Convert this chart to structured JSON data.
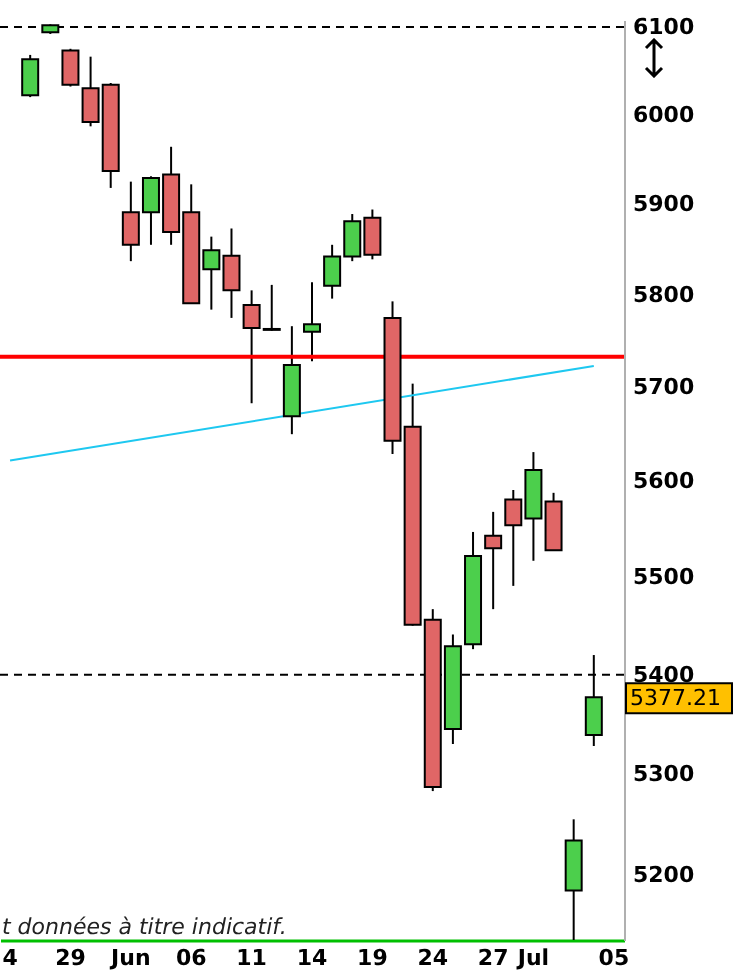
{
  "chart_data": {
    "type": "candlestick",
    "categories": [
      "4",
      null,
      null,
      "29",
      null,
      null,
      "Jun",
      null,
      null,
      "06",
      null,
      null,
      "11",
      null,
      null,
      "14",
      null,
      null,
      "19",
      null,
      null,
      "24",
      null,
      null,
      "27",
      null,
      "Jul",
      null,
      null,
      null,
      "05"
    ],
    "ohlc": [
      null,
      [
        6022,
        6068,
        6020,
        6063
      ],
      [
        6094,
        6103,
        6092,
        6102
      ],
      [
        6073,
        6075,
        6032,
        6034
      ],
      [
        6030,
        6066,
        5987,
        5992
      ],
      [
        6034,
        6036,
        5918,
        5937
      ],
      [
        5891,
        5925,
        5837,
        5855
      ],
      [
        5891,
        5931,
        5855,
        5929
      ],
      [
        5933,
        5964,
        5855,
        5869
      ],
      [
        5891,
        5922,
        5791,
        5791
      ],
      [
        5828,
        5864,
        5784,
        5849
      ],
      [
        5843,
        5873,
        5775,
        5805
      ],
      [
        5789,
        5805,
        5683,
        5764
      ],
      [
        5763,
        5811,
        5761,
        5762
      ],
      [
        5669,
        5766,
        5650,
        5724
      ],
      [
        5760,
        5814,
        5728,
        5768
      ],
      [
        5810,
        5855,
        5796,
        5842
      ],
      [
        5842,
        5889,
        5837,
        5881
      ],
      [
        5885,
        5894,
        5839,
        5844
      ],
      [
        5775,
        5793,
        5629,
        5643
      ],
      [
        5658,
        5704,
        5450,
        5451
      ],
      [
        5456,
        5467,
        5283,
        5287
      ],
      [
        5345,
        5441,
        5330,
        5429
      ],
      [
        5431,
        5547,
        5426,
        5522
      ],
      [
        5543,
        5568,
        5467,
        5530
      ],
      [
        5581,
        5591,
        5491,
        5554
      ],
      [
        5561,
        5631,
        5517,
        5612
      ],
      [
        5579,
        5588,
        5528,
        5528
      ],
      [
        5185,
        5255,
        5137,
        5234
      ],
      [
        5339,
        5420,
        5328,
        5377.21
      ],
      null
    ],
    "colors": [
      null,
      "#4ccf4c",
      "#4ccf4c",
      "#e06666",
      "#e06666",
      "#e06666",
      "#e06666",
      "#4ccf4c",
      "#e06666",
      "#e06666",
      "#4ccf4c",
      "#e06666",
      "#e06666",
      "#e06666",
      "#4ccf4c",
      "#4ccf4c",
      "#4ccf4c",
      "#4ccf4c",
      "#e06666",
      "#e06666",
      "#e06666",
      "#e06666",
      "#4ccf4c",
      "#4ccf4c",
      "#e06666",
      "#e06666",
      "#4ccf4c",
      "#e06666",
      "#4ccf4c",
      "#4ccf4c",
      null
    ],
    "series": [
      {
        "type": "line",
        "color": "#1ec8f0",
        "values": [
          5622,
          null,
          null,
          null,
          null,
          null,
          null,
          null,
          null,
          null,
          null,
          null,
          null,
          null,
          null,
          null,
          null,
          null,
          null,
          null,
          null,
          null,
          null,
          null,
          null,
          null,
          null,
          null,
          null,
          5723,
          null
        ]
      }
    ],
    "ylim": [
      5137,
      6108
    ],
    "yticks": [
      5200,
      5300,
      5400,
      5500,
      5600,
      5700,
      5800,
      5900,
      6000,
      6100
    ],
    "log": true,
    "ref_lines": [
      {
        "axis": "y",
        "value": 6100,
        "color": "#000000",
        "line_style": "dashed"
      },
      {
        "axis": "y",
        "value": 5400,
        "color": "#000000",
        "line_style": "dashed"
      },
      {
        "axis": "y",
        "value": 5733,
        "color": "#ff0000",
        "line_style": "solid"
      }
    ],
    "annotations": [
      "t données à titre indicatif.",
      "5377.21"
    ]
  }
}
